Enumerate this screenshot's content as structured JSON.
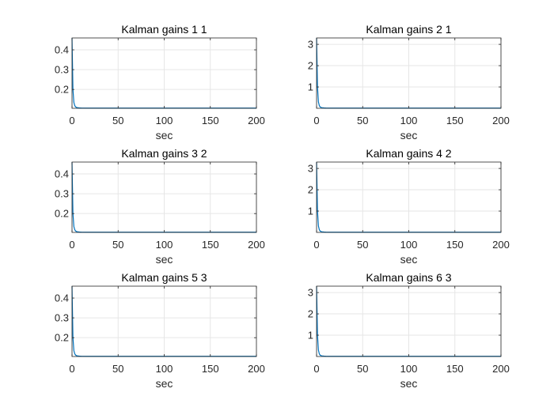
{
  "figure": {
    "background": "#ffffff"
  },
  "style": {
    "line_color": "#0072bd",
    "axis_color": "#262626",
    "grid_color": "#e6e6e6"
  },
  "chart_data": [
    {
      "type": "line",
      "title": "Kalman gains 1 1",
      "xlabel": "sec",
      "ylabel": "",
      "xlim": [
        0,
        200
      ],
      "ylim": [
        0.105,
        0.46
      ],
      "xticks": [
        0,
        50,
        100,
        150,
        200
      ],
      "xtick_labels": [
        "0",
        "50",
        "100",
        "150",
        "200"
      ],
      "yticks": [
        0.2,
        0.3,
        0.4
      ],
      "ytick_labels": [
        "0.2",
        "0.3",
        "0.4"
      ],
      "grid": true,
      "series": [
        {
          "x": [
            0,
            1,
            2,
            3,
            4,
            5,
            6,
            8,
            10,
            15,
            20,
            30,
            50,
            100,
            150,
            200
          ],
          "y": [
            0.46,
            0.2,
            0.135,
            0.118,
            0.112,
            0.109,
            0.108,
            0.107,
            0.1065,
            0.106,
            0.106,
            0.106,
            0.106,
            0.106,
            0.106,
            0.106
          ]
        }
      ]
    },
    {
      "type": "line",
      "title": "Kalman gains 2 1",
      "xlabel": "sec",
      "ylabel": "",
      "xlim": [
        0,
        200
      ],
      "ylim": [
        0.0,
        3.3
      ],
      "xticks": [
        0,
        50,
        100,
        150,
        200
      ],
      "xtick_labels": [
        "0",
        "50",
        "100",
        "150",
        "200"
      ],
      "yticks": [
        1,
        2,
        3
      ],
      "ytick_labels": [
        "1",
        "2",
        "3"
      ],
      "grid": true,
      "series": [
        {
          "x": [
            0,
            1,
            2,
            3,
            4,
            5,
            6,
            8,
            10,
            15,
            20,
            30,
            50,
            100,
            150,
            200
          ],
          "y": [
            3.3,
            1.0,
            0.3,
            0.12,
            0.06,
            0.04,
            0.03,
            0.02,
            0.015,
            0.01,
            0.01,
            0.01,
            0.01,
            0.01,
            0.01,
            0.01
          ]
        }
      ]
    },
    {
      "type": "line",
      "title": "Kalman gains 3 2",
      "xlabel": "sec",
      "ylabel": "",
      "xlim": [
        0,
        200
      ],
      "ylim": [
        0.105,
        0.46
      ],
      "xticks": [
        0,
        50,
        100,
        150,
        200
      ],
      "xtick_labels": [
        "0",
        "50",
        "100",
        "150",
        "200"
      ],
      "yticks": [
        0.2,
        0.3,
        0.4
      ],
      "ytick_labels": [
        "0.2",
        "0.3",
        "0.4"
      ],
      "grid": true,
      "series": [
        {
          "x": [
            0,
            1,
            2,
            3,
            4,
            5,
            6,
            8,
            10,
            15,
            20,
            30,
            50,
            100,
            150,
            200
          ],
          "y": [
            0.46,
            0.2,
            0.135,
            0.118,
            0.112,
            0.109,
            0.108,
            0.107,
            0.1065,
            0.106,
            0.106,
            0.106,
            0.106,
            0.106,
            0.106,
            0.106
          ]
        }
      ]
    },
    {
      "type": "line",
      "title": "Kalman gains 4 2",
      "xlabel": "sec",
      "ylabel": "",
      "xlim": [
        0,
        200
      ],
      "ylim": [
        0.0,
        3.3
      ],
      "xticks": [
        0,
        50,
        100,
        150,
        200
      ],
      "xtick_labels": [
        "0",
        "50",
        "100",
        "150",
        "200"
      ],
      "yticks": [
        1,
        2,
        3
      ],
      "ytick_labels": [
        "1",
        "2",
        "3"
      ],
      "grid": true,
      "series": [
        {
          "x": [
            0,
            1,
            2,
            3,
            4,
            5,
            6,
            8,
            10,
            15,
            20,
            30,
            50,
            100,
            150,
            200
          ],
          "y": [
            3.3,
            1.0,
            0.3,
            0.12,
            0.06,
            0.04,
            0.03,
            0.02,
            0.015,
            0.01,
            0.01,
            0.01,
            0.01,
            0.01,
            0.01,
            0.01
          ]
        }
      ]
    },
    {
      "type": "line",
      "title": "Kalman gains 5 3",
      "xlabel": "sec",
      "ylabel": "",
      "xlim": [
        0,
        200
      ],
      "ylim": [
        0.105,
        0.46
      ],
      "xticks": [
        0,
        50,
        100,
        150,
        200
      ],
      "xtick_labels": [
        "0",
        "50",
        "100",
        "150",
        "200"
      ],
      "yticks": [
        0.2,
        0.3,
        0.4
      ],
      "ytick_labels": [
        "0.2",
        "0.3",
        "0.4"
      ],
      "grid": true,
      "series": [
        {
          "x": [
            0,
            1,
            2,
            3,
            4,
            5,
            6,
            8,
            10,
            15,
            20,
            30,
            50,
            100,
            150,
            200
          ],
          "y": [
            0.46,
            0.2,
            0.135,
            0.118,
            0.112,
            0.109,
            0.108,
            0.107,
            0.1065,
            0.106,
            0.106,
            0.106,
            0.106,
            0.106,
            0.106,
            0.106
          ]
        }
      ]
    },
    {
      "type": "line",
      "title": "Kalman gains 6 3",
      "xlabel": "sec",
      "ylabel": "",
      "xlim": [
        0,
        200
      ],
      "ylim": [
        0.0,
        3.3
      ],
      "xticks": [
        0,
        50,
        100,
        150,
        200
      ],
      "xtick_labels": [
        "0",
        "50",
        "100",
        "150",
        "200"
      ],
      "yticks": [
        1,
        2,
        3
      ],
      "ytick_labels": [
        "1",
        "2",
        "3"
      ],
      "grid": true,
      "series": [
        {
          "x": [
            0,
            1,
            2,
            3,
            4,
            5,
            6,
            8,
            10,
            15,
            20,
            30,
            50,
            100,
            150,
            200
          ],
          "y": [
            3.3,
            1.0,
            0.3,
            0.12,
            0.06,
            0.04,
            0.03,
            0.02,
            0.015,
            0.01,
            0.01,
            0.01,
            0.01,
            0.01,
            0.01,
            0.01
          ]
        }
      ]
    }
  ]
}
